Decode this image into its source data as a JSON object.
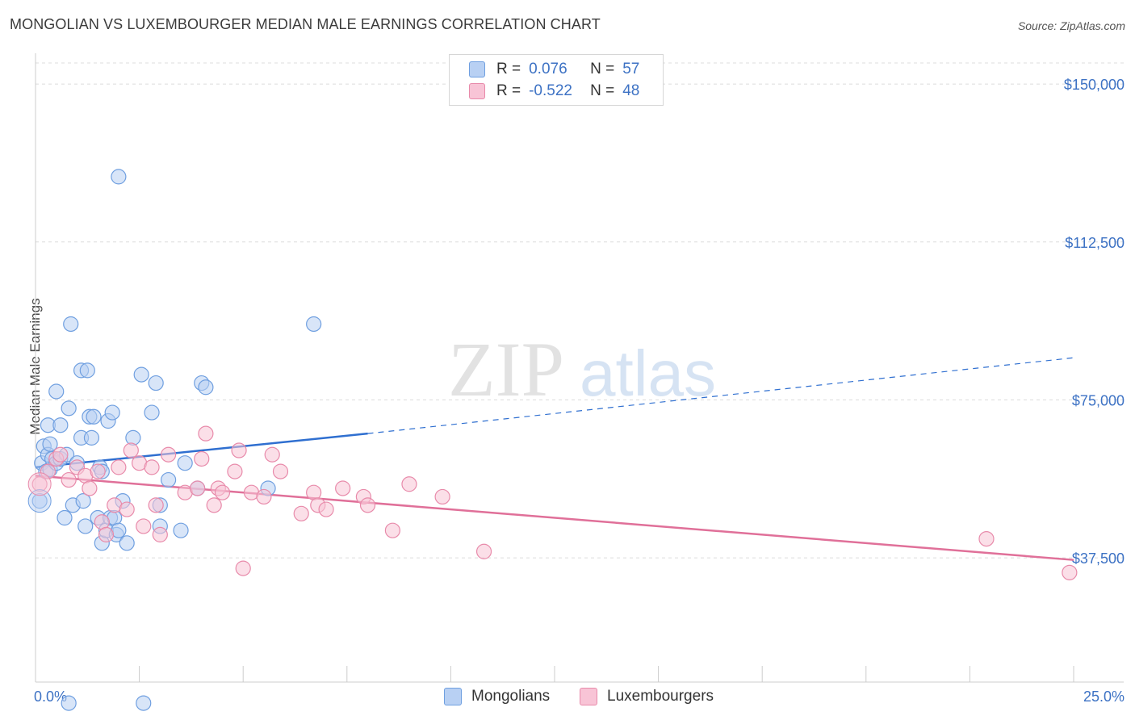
{
  "title": "MONGOLIAN VS LUXEMBOURGER MEDIAN MALE EARNINGS CORRELATION CHART",
  "source": "Source: ZipAtlas.com",
  "watermark": {
    "zip": "ZIP",
    "atlas": "atlas"
  },
  "legend": {
    "r_label": "R =",
    "n_label": "N =",
    "rows": [
      {
        "r": "0.076",
        "n": "57",
        "fill": "#b8d0f3",
        "stroke": "#6f9fe0"
      },
      {
        "r": "-0.522",
        "n": "48",
        "fill": "#f8c4d6",
        "stroke": "#e88aaa"
      }
    ]
  },
  "bottom_legend": [
    {
      "label": "Mongolians",
      "fill": "#b8d0f3",
      "stroke": "#6f9fe0"
    },
    {
      "label": "Luxembourgers",
      "fill": "#f8c4d6",
      "stroke": "#e88aaa"
    }
  ],
  "chart_data": {
    "type": "scatter",
    "xlabel": "",
    "ylabel": "Median Male Earnings",
    "xlim": [
      0,
      25
    ],
    "ylim": [
      8000,
      155000
    ],
    "x_tick_labels": [
      "0.0%",
      "25.0%"
    ],
    "y_ticks": [
      37500,
      75000,
      112500,
      150000
    ],
    "y_tick_labels": [
      "$37,500",
      "$75,000",
      "$112,500",
      "$150,000"
    ],
    "series": [
      {
        "name": "Mongolians",
        "color": "#6f9fe0",
        "fill": "#b8d0f3",
        "trend": {
          "x0": 0,
          "y0": 59000,
          "x1": 8,
          "y1": 67000,
          "x_dash_end": 25,
          "y_dash_end": 85000
        },
        "points": [
          [
            0.1,
            51000
          ],
          [
            0.15,
            60000
          ],
          [
            0.2,
            64000
          ],
          [
            0.25,
            58000
          ],
          [
            0.3,
            62000
          ],
          [
            0.3,
            69000
          ],
          [
            0.35,
            58500
          ],
          [
            0.4,
            61000
          ],
          [
            0.35,
            64500
          ],
          [
            0.5,
            60000
          ],
          [
            0.5,
            77000
          ],
          [
            0.6,
            69000
          ],
          [
            0.6,
            61000
          ],
          [
            0.7,
            47000
          ],
          [
            0.75,
            62000
          ],
          [
            0.8,
            73000
          ],
          [
            0.85,
            93000
          ],
          [
            0.9,
            50000
          ],
          [
            1.0,
            60000
          ],
          [
            1.1,
            82000
          ],
          [
            1.1,
            66000
          ],
          [
            1.15,
            51000
          ],
          [
            1.2,
            45000
          ],
          [
            1.25,
            82000
          ],
          [
            1.3,
            71000
          ],
          [
            1.35,
            66000
          ],
          [
            1.4,
            71000
          ],
          [
            1.5,
            47000
          ],
          [
            1.55,
            59000
          ],
          [
            1.6,
            41000
          ],
          [
            1.6,
            58000
          ],
          [
            1.7,
            44000
          ],
          [
            1.75,
            70000
          ],
          [
            1.8,
            47000
          ],
          [
            1.85,
            72000
          ],
          [
            1.9,
            47000
          ],
          [
            1.95,
            43000
          ],
          [
            2.0,
            44000
          ],
          [
            2.1,
            51000
          ],
          [
            2.2,
            41000
          ],
          [
            2.35,
            66000
          ],
          [
            2.55,
            81000
          ],
          [
            2.8,
            72000
          ],
          [
            2.9,
            79000
          ],
          [
            3.0,
            50000
          ],
          [
            3.5,
            44000
          ],
          [
            3.0,
            45000
          ],
          [
            3.2,
            56000
          ],
          [
            3.6,
            60000
          ],
          [
            3.9,
            54000
          ],
          [
            4.0,
            79000
          ],
          [
            4.1,
            78000
          ],
          [
            5.6,
            54000
          ],
          [
            6.7,
            93000
          ],
          [
            2.0,
            128000
          ],
          [
            0.8,
            3000
          ],
          [
            2.6,
            3000
          ]
        ]
      },
      {
        "name": "Luxembourgers",
        "color": "#e88aaa",
        "fill": "#f8c4d6",
        "trend": {
          "x0": 0,
          "y0": 57000,
          "x1": 25,
          "y1": 37000
        },
        "points": [
          [
            0.1,
            55000
          ],
          [
            0.3,
            58000
          ],
          [
            0.5,
            61000
          ],
          [
            0.6,
            62000
          ],
          [
            0.8,
            56000
          ],
          [
            1.0,
            59000
          ],
          [
            1.2,
            57000
          ],
          [
            1.3,
            54000
          ],
          [
            1.5,
            58000
          ],
          [
            1.6,
            46000
          ],
          [
            1.7,
            43000
          ],
          [
            1.9,
            50000
          ],
          [
            2.0,
            59000
          ],
          [
            2.2,
            49000
          ],
          [
            2.3,
            63000
          ],
          [
            2.5,
            60000
          ],
          [
            2.6,
            45000
          ],
          [
            2.8,
            59000
          ],
          [
            2.9,
            50000
          ],
          [
            3.0,
            43000
          ],
          [
            3.2,
            62000
          ],
          [
            3.6,
            53000
          ],
          [
            3.9,
            54000
          ],
          [
            4.0,
            61000
          ],
          [
            4.1,
            67000
          ],
          [
            4.3,
            50000
          ],
          [
            4.4,
            54000
          ],
          [
            4.5,
            53000
          ],
          [
            4.8,
            58000
          ],
          [
            4.9,
            63000
          ],
          [
            5.2,
            53000
          ],
          [
            5.7,
            62000
          ],
          [
            5.9,
            58000
          ],
          [
            6.4,
            48000
          ],
          [
            6.7,
            53000
          ],
          [
            6.8,
            50000
          ],
          [
            7.4,
            54000
          ],
          [
            7.9,
            52000
          ],
          [
            8.0,
            50000
          ],
          [
            8.6,
            44000
          ],
          [
            9.0,
            55000
          ],
          [
            9.8,
            52000
          ],
          [
            10.8,
            39000
          ],
          [
            5.0,
            35000
          ],
          [
            22.9,
            42000
          ],
          [
            24.9,
            34000
          ],
          [
            5.5,
            52000
          ],
          [
            7.0,
            49000
          ]
        ]
      }
    ]
  }
}
